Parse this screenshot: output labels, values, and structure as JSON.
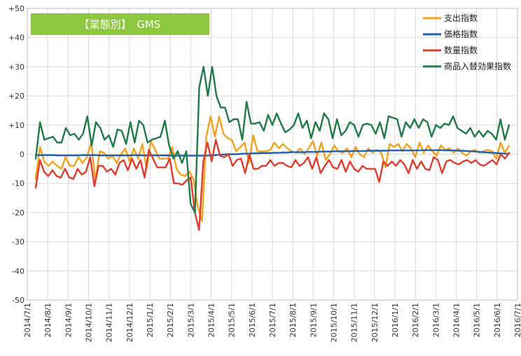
{
  "chart_data": {
    "type": "line",
    "title": "【業態別】　GMS",
    "title_bg": "#8dc63f",
    "ylim": [
      -50,
      50
    ],
    "yticks": [
      50,
      40,
      30,
      20,
      10,
      0,
      -10,
      -20,
      -30,
      -40,
      -50
    ],
    "ytick_labels": [
      "+50",
      "+40",
      "+30",
      "+20",
      "+10",
      "0",
      "-10",
      "-20",
      "-30",
      "-40",
      "-50"
    ],
    "x_labels": [
      "2014/7/1",
      "2014/8/1",
      "2014/9/1",
      "2014/10/1",
      "2014/11/1",
      "2014/12/1",
      "2015/1/1",
      "2015/2/1",
      "2015/3/1",
      "2015/4/1",
      "2015/5/1",
      "2015/6/1",
      "2015/7/1",
      "2015/8/1",
      "2015/9/1",
      "2015/10/1",
      "2015/11/1",
      "2015/12/1",
      "2016/1/1",
      "2016/2/1",
      "2016/3/1",
      "2016/4/1",
      "2016/5/1",
      "2016/6/1",
      "2016/7/1"
    ],
    "grid": true,
    "legend_position": "top-right",
    "series": [
      {
        "name": "支出指数",
        "color": "#f7a11a",
        "values": [
          -8.5,
          2.5,
          -2.5,
          -4,
          -2.5,
          -4,
          -5,
          -1,
          -4,
          -4,
          -1,
          -3,
          -1,
          4,
          -9,
          1,
          0.5,
          -1.5,
          -0.5,
          -3,
          0,
          2,
          -2.5,
          2,
          -1.5,
          3.5,
          -5,
          4.5,
          1.5,
          -1.5,
          -1.5,
          -1.5,
          2.5,
          -5,
          -7,
          -7.5,
          -6,
          -8.5,
          -18,
          -23,
          6,
          13,
          6,
          13,
          7,
          5.5,
          5,
          1,
          2.5,
          4,
          -3,
          6.5,
          1,
          1,
          1,
          1.5,
          4,
          2,
          3.5,
          2,
          1,
          0.5,
          2,
          0,
          2,
          4.5,
          -0.5,
          4,
          -2,
          0,
          3,
          1,
          0.5,
          2,
          -1,
          2.5,
          0,
          -1,
          2,
          0.5,
          1.5,
          0.5,
          -4.5,
          3.5,
          2.5,
          3.5,
          1,
          3.5,
          2,
          -1,
          4,
          0.5,
          3,
          1,
          -0.5,
          3,
          1.5,
          2,
          0.5,
          2,
          0.5,
          -0.5,
          1,
          1.5,
          0.5,
          1,
          1.5,
          1,
          -1.5,
          4,
          0.5,
          3
        ]
      },
      {
        "name": "価格指数",
        "color": "#1f5fb4",
        "values": [
          -0.3,
          -0.3,
          -0.3,
          -0.3,
          -0.3,
          -0.4,
          -0.4,
          -0.4,
          -0.4,
          -0.4,
          -0.4,
          -0.3,
          -0.3,
          -0.3,
          -0.3,
          -0.4,
          -0.4,
          -0.4,
          -0.4,
          -0.4,
          -0.4,
          -0.4,
          -0.4,
          -0.3,
          -0.3,
          -0.4,
          -0.4,
          -0.4,
          -0.4,
          -0.4,
          -0.4,
          -0.4,
          -0.5,
          -0.5,
          -0.5,
          -0.5,
          -0.5,
          -0.5,
          -0.5,
          -0.5,
          -0.5,
          -0.4,
          -0.3,
          -0.2,
          -0.1,
          0,
          0,
          0,
          0.1,
          0.2,
          0.2,
          0.3,
          0.3,
          0.4,
          0.4,
          0.4,
          0.5,
          0.5,
          0.6,
          0.6,
          0.7,
          0.7,
          0.7,
          0.7,
          0.8,
          0.8,
          0.8,
          0.9,
          0.9,
          0.9,
          1,
          1,
          1,
          1,
          1.1,
          1.1,
          1.1,
          1.1,
          1.2,
          1.2,
          1.2,
          1.2,
          1.2,
          1.3,
          1.3,
          1.3,
          1.3,
          1.3,
          1.3,
          1.3,
          1.3,
          1.4,
          1.4,
          1.4,
          1.4,
          1.4,
          1.3,
          1.3,
          1.3,
          1.2,
          1.2,
          1.1,
          1.0,
          0.9,
          0.8,
          0.7,
          0.6,
          0.5,
          0.4,
          0.3,
          0.2,
          0.1
        ]
      },
      {
        "name": "数量指数",
        "color": "#e03c2d",
        "values": [
          -11.5,
          -2,
          -6,
          -7.5,
          -5.5,
          -7.5,
          -8,
          -5,
          -8,
          -8.5,
          -5,
          -7,
          -6,
          -1,
          -11,
          -4,
          -4,
          -6,
          -5,
          -7,
          -3,
          -2,
          -5.5,
          -1.5,
          -5,
          -2,
          -8,
          1.5,
          -1.5,
          -4.5,
          -4.5,
          -4.5,
          -1.5,
          -10,
          -10,
          -10.5,
          -9,
          -8,
          -20,
          -26,
          -2.5,
          4,
          -2.5,
          5,
          -0.5,
          -1,
          0,
          -4,
          -2,
          -1.5,
          -6.5,
          0,
          -5,
          -5,
          -4,
          -4,
          -2,
          -4,
          -3,
          -3,
          -4,
          -4.5,
          -2,
          -4,
          -3,
          -1,
          -5,
          -1,
          -6.5,
          -4,
          -2,
          -4.5,
          -5,
          -2,
          -6,
          -2.5,
          -5,
          -6,
          -4,
          -5,
          -5,
          -5,
          -9.5,
          -2.5,
          -4,
          -2.5,
          -4,
          -2,
          -3.5,
          -6.5,
          -2,
          -5,
          -2.5,
          -5,
          -5.5,
          -1,
          -2,
          -6.5,
          -2.5,
          -2,
          -3,
          -3.5,
          -2.5,
          -2,
          -3,
          -2,
          -3.5,
          -4,
          -3,
          -2,
          -3.5,
          0,
          -1.5,
          0.5
        ]
      },
      {
        "name": "商品入替効果指数",
        "color": "#1e7a46",
        "values": [
          -1.5,
          11,
          5,
          5.5,
          6,
          4,
          4,
          9,
          6.5,
          7,
          5,
          7,
          13,
          3,
          11,
          9,
          5,
          6.5,
          2.5,
          8.5,
          8,
          3.5,
          11,
          4,
          11.5,
          10,
          4,
          5,
          5.5,
          6,
          11.5,
          3,
          -1.5,
          1,
          -3,
          1,
          -17,
          -20,
          23,
          30,
          20,
          30,
          20,
          16,
          16,
          11,
          12,
          12,
          5,
          18,
          10.5,
          10.5,
          11,
          8,
          13.5,
          10,
          14,
          10.5,
          7.5,
          8.5,
          10,
          14,
          9,
          11.5,
          5.5,
          11,
          8,
          14,
          12,
          5.5,
          12,
          6.5,
          8,
          11,
          10,
          6,
          10,
          10.5,
          10,
          7,
          11,
          5.5,
          13,
          12.5,
          12,
          6,
          11,
          9,
          12,
          9,
          12,
          11,
          6,
          10,
          9,
          10.5,
          10,
          13,
          9,
          8,
          7,
          9,
          6,
          8,
          6,
          8,
          7,
          5,
          12,
          5,
          10
        ]
      }
    ]
  }
}
